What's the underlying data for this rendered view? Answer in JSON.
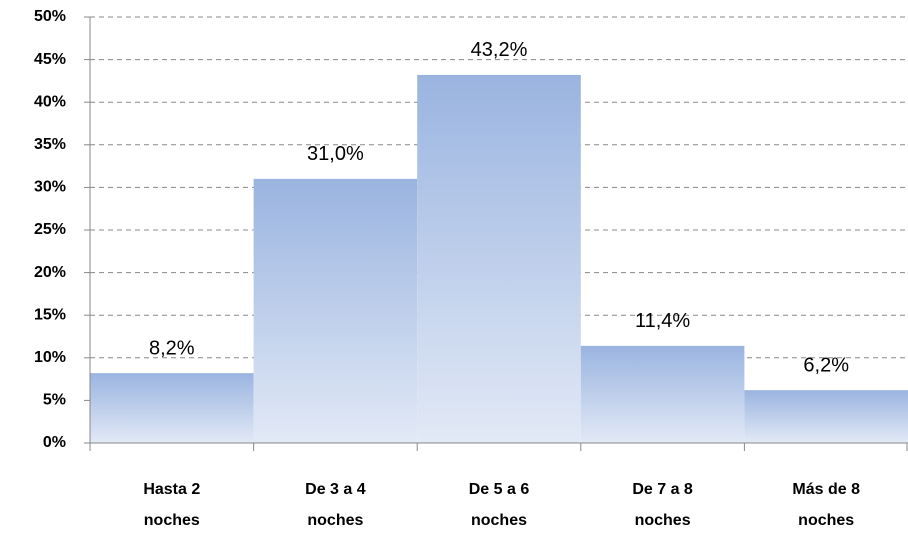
{
  "chart_data": {
    "type": "bar",
    "categories": [
      "Hasta 2 noches",
      "De 3 a 4 noches",
      "De 5 a 6 noches",
      "De 7 a 8 noches",
      "Más de 8 noches"
    ],
    "values": [
      8.2,
      31.0,
      43.2,
      11.4,
      6.2
    ],
    "value_labels": [
      "8,2%",
      "31,0%",
      "43,2%",
      "11,4%",
      "6,2%"
    ],
    "color": "#9ab4e0",
    "ylim": [
      0,
      50
    ],
    "yticks": [
      {
        "value": 0,
        "label": "0%"
      },
      {
        "value": 5,
        "label": "5%"
      },
      {
        "value": 10,
        "label": "10%"
      },
      {
        "value": 15,
        "label": "15%"
      },
      {
        "value": 20,
        "label": "20%"
      },
      {
        "value": 25,
        "label": "25%"
      },
      {
        "value": 30,
        "label": "30%"
      },
      {
        "value": 35,
        "label": "35%"
      },
      {
        "value": 40,
        "label": "40%"
      },
      {
        "value": 45,
        "label": "45%"
      },
      {
        "value": 50,
        "label": "50%"
      }
    ],
    "grid": true
  }
}
